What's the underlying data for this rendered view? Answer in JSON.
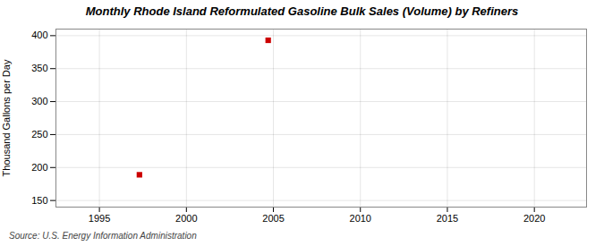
{
  "chart_data": {
    "type": "scatter",
    "title": "Monthly Rhode Island Reformulated Gasoline Bulk Sales (Volume) by Refiners",
    "ylabel": "Thousand Gallons per Day",
    "source": "Source: U.S. Energy Information Administration",
    "x": [
      1997.3,
      2004.7
    ],
    "values": [
      189,
      393
    ],
    "color": "#cc0000",
    "marker": "square",
    "xlim": [
      1992.5,
      2023
    ],
    "xticks": [
      1995,
      2000,
      2005,
      2010,
      2015,
      2020
    ],
    "ylim": [
      140,
      410
    ],
    "yticks": [
      150,
      200,
      250,
      300,
      350,
      400
    ],
    "grid": true
  }
}
